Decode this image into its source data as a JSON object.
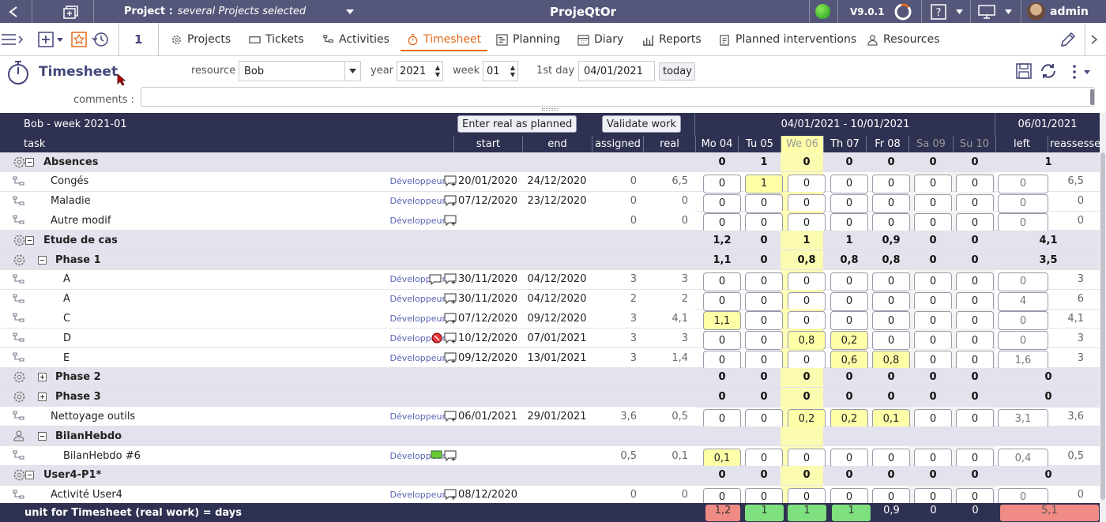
{
  "top": {
    "project_label": "Project :",
    "project_value": "several Projects selected",
    "app_title": "ProjeQtOr",
    "version": "V9.0.1",
    "user": "admin"
  },
  "menu": {
    "items": [
      "Projects",
      "Tickets",
      "Activities",
      "Timesheet",
      "Planning",
      "Diary",
      "Reports",
      "Planned interventions",
      "Resources"
    ],
    "favorites_count": "1",
    "active": "Timesheet"
  },
  "filter": {
    "title": "Timesheet",
    "resource_label": "resource",
    "resource_value": "Bob",
    "year_label": "year",
    "year_value": "2021",
    "week_label": "week",
    "week_value": "01",
    "firstday_label": "1st day",
    "firstday_value": "04/01/2021",
    "today_label": "today",
    "comments_label": "comments :"
  },
  "grid": {
    "header_title": "Bob - week 2021-01",
    "btn_enter": "Enter real as planned",
    "btn_validate": "Validate work",
    "week_range": "04/01/2021 - 10/01/2021",
    "current_date": "06/01/2021",
    "cols": {
      "task": "task",
      "start": "start",
      "end": "end",
      "assigned": "assigned",
      "real": "real",
      "left": "left",
      "reassessed": "reassessed"
    },
    "days": [
      "Mo 04",
      "Tu 05",
      "We 06",
      "Th 07",
      "Fr 08",
      "Sa 09",
      "Su 10"
    ],
    "rows": [
      {
        "type": "group",
        "level": 0,
        "name": "Absences",
        "days": [
          "0",
          "1",
          "0",
          "0",
          "0",
          "0",
          "0"
        ],
        "left": "1",
        "icon": "gear"
      },
      {
        "type": "task",
        "level": 1,
        "name": "Congés",
        "role": "Développeur",
        "start": "20/01/2020",
        "end": "24/12/2020",
        "assigned": "0",
        "real": "6,5",
        "days": [
          "0",
          "1",
          "0",
          "0",
          "0",
          "0",
          "0"
        ],
        "yel": [
          1
        ],
        "left": "0",
        "reassessed": "6,5"
      },
      {
        "type": "task",
        "level": 1,
        "name": "Maladie",
        "role": "Développeur",
        "start": "07/12/2020",
        "end": "23/12/2020",
        "assigned": "0",
        "real": "0",
        "days": [
          "0",
          "0",
          "0",
          "0",
          "0",
          "0",
          "0"
        ],
        "yel": [],
        "left": "0",
        "reassessed": "0"
      },
      {
        "type": "task",
        "level": 1,
        "name": "Autre modif",
        "role": "Développeur",
        "start": "",
        "end": "",
        "assigned": "0",
        "real": "0",
        "days": [
          "0",
          "0",
          "0",
          "0",
          "0",
          "0",
          "0"
        ],
        "yel": [],
        "left": "0",
        "reassessed": "0"
      },
      {
        "type": "group",
        "level": 0,
        "name": "Etude de cas",
        "days": [
          "1,2",
          "0",
          "1",
          "1",
          "0,9",
          "0",
          "0"
        ],
        "left": "4,1",
        "icon": "gear"
      },
      {
        "type": "group",
        "level": 1,
        "name": "Phase 1",
        "days": [
          "1,1",
          "0",
          "0,8",
          "0,8",
          "0,8",
          "0",
          "0"
        ],
        "left": "3,5",
        "icon": "gear"
      },
      {
        "type": "task",
        "level": 2,
        "name": "A",
        "role": "Développeur",
        "start": "30/11/2020",
        "end": "04/12/2020",
        "assigned": "3",
        "real": "3",
        "days": [
          "0",
          "0",
          "0",
          "0",
          "0",
          "0",
          "0"
        ],
        "yel": [],
        "left": "0",
        "reassessed": "3",
        "comment": true
      },
      {
        "type": "task",
        "level": 2,
        "name": "A",
        "role": "Développeur",
        "start": "30/11/2020",
        "end": "04/12/2020",
        "assigned": "2",
        "real": "2",
        "days": [
          "0",
          "0",
          "0",
          "0",
          "0",
          "0",
          "0"
        ],
        "yel": [],
        "left": "4",
        "reassessed": "6"
      },
      {
        "type": "task",
        "level": 2,
        "name": "C",
        "role": "Développeur",
        "start": "07/12/2020",
        "end": "09/12/2020",
        "assigned": "3",
        "real": "4,1",
        "days": [
          "1,1",
          "0",
          "0",
          "0",
          "0",
          "0",
          "0"
        ],
        "yel": [
          0
        ],
        "left": "0",
        "reassessed": "4,1"
      },
      {
        "type": "task",
        "level": 2,
        "name": "D",
        "role": "Développeur",
        "start": "10/12/2020",
        "end": "07/01/2021",
        "assigned": "3",
        "real": "3",
        "days": [
          "0",
          "0",
          "0,8",
          "0,2",
          "0",
          "0",
          "0"
        ],
        "yel": [
          2,
          3
        ],
        "left": "0",
        "reassessed": "3",
        "warn": true
      },
      {
        "type": "task",
        "level": 2,
        "name": "E",
        "role": "Développeur",
        "start": "09/12/2020",
        "end": "13/01/2021",
        "assigned": "3",
        "real": "1,4",
        "days": [
          "0",
          "0",
          "0",
          "0,6",
          "0,8",
          "0",
          "0"
        ],
        "yel": [
          3,
          4
        ],
        "left": "1,6",
        "reassessed": "3"
      },
      {
        "type": "group",
        "level": 1,
        "name": "Phase 2",
        "days": [
          "0",
          "0",
          "0",
          "0",
          "0",
          "0",
          "0"
        ],
        "left": "0",
        "icon": "gear",
        "collapsed": true
      },
      {
        "type": "group",
        "level": 1,
        "name": "Phase 3",
        "days": [
          "0",
          "0",
          "0",
          "0",
          "0",
          "0",
          "0"
        ],
        "left": "0",
        "icon": "gear",
        "collapsed": true
      },
      {
        "type": "task",
        "level": 1,
        "name": "Nettoyage outils",
        "role": "Développeur",
        "start": "06/01/2021",
        "end": "29/01/2021",
        "assigned": "3,6",
        "real": "0,5",
        "days": [
          "0",
          "0",
          "0,2",
          "0,2",
          "0,1",
          "0",
          "0"
        ],
        "yel": [
          2,
          3,
          4
        ],
        "left": "3,1",
        "reassessed": "3,6"
      },
      {
        "type": "group",
        "level": 1,
        "name": "BilanHebdo",
        "days": [
          "",
          "",
          "",
          "",
          "",
          "",
          ""
        ],
        "left": "",
        "icon": "meeting"
      },
      {
        "type": "task",
        "level": 2,
        "name": "BilanHebdo #6",
        "role": "Développeur",
        "start": "",
        "end": "",
        "assigned": "0,5",
        "real": "0,1",
        "days": [
          "0,1",
          "0",
          "0",
          "0",
          "0",
          "0",
          "0"
        ],
        "yel": [
          0
        ],
        "left": "0,4",
        "reassessed": "0,5",
        "flag": true
      },
      {
        "type": "group",
        "level": 0,
        "name": "User4-P1*",
        "days": [
          "0",
          "0",
          "0",
          "0",
          "0",
          "0",
          "0"
        ],
        "left": "0",
        "icon": "gear"
      },
      {
        "type": "task",
        "level": 1,
        "name": "Activité User4",
        "role": "Développeur",
        "start": "08/12/2020",
        "end": "",
        "assigned": "0",
        "real": "0",
        "days": [
          "0",
          "0",
          "0",
          "0",
          "0",
          "0",
          "0"
        ],
        "yel": [],
        "left": "0",
        "reassessed": "0"
      }
    ],
    "footer_label": "unit for Timesheet (real work) = days",
    "footer_days": [
      "1,2",
      "1",
      "1",
      "1",
      "0,9",
      "0",
      "0"
    ],
    "footer_left": "5,1"
  },
  "colors": {
    "dark": "#2e3151",
    "topbar": "#55577a",
    "accent": "#e36a1e",
    "yellow": "#ffffa8",
    "red": "#f08080",
    "green": "#80e080"
  }
}
